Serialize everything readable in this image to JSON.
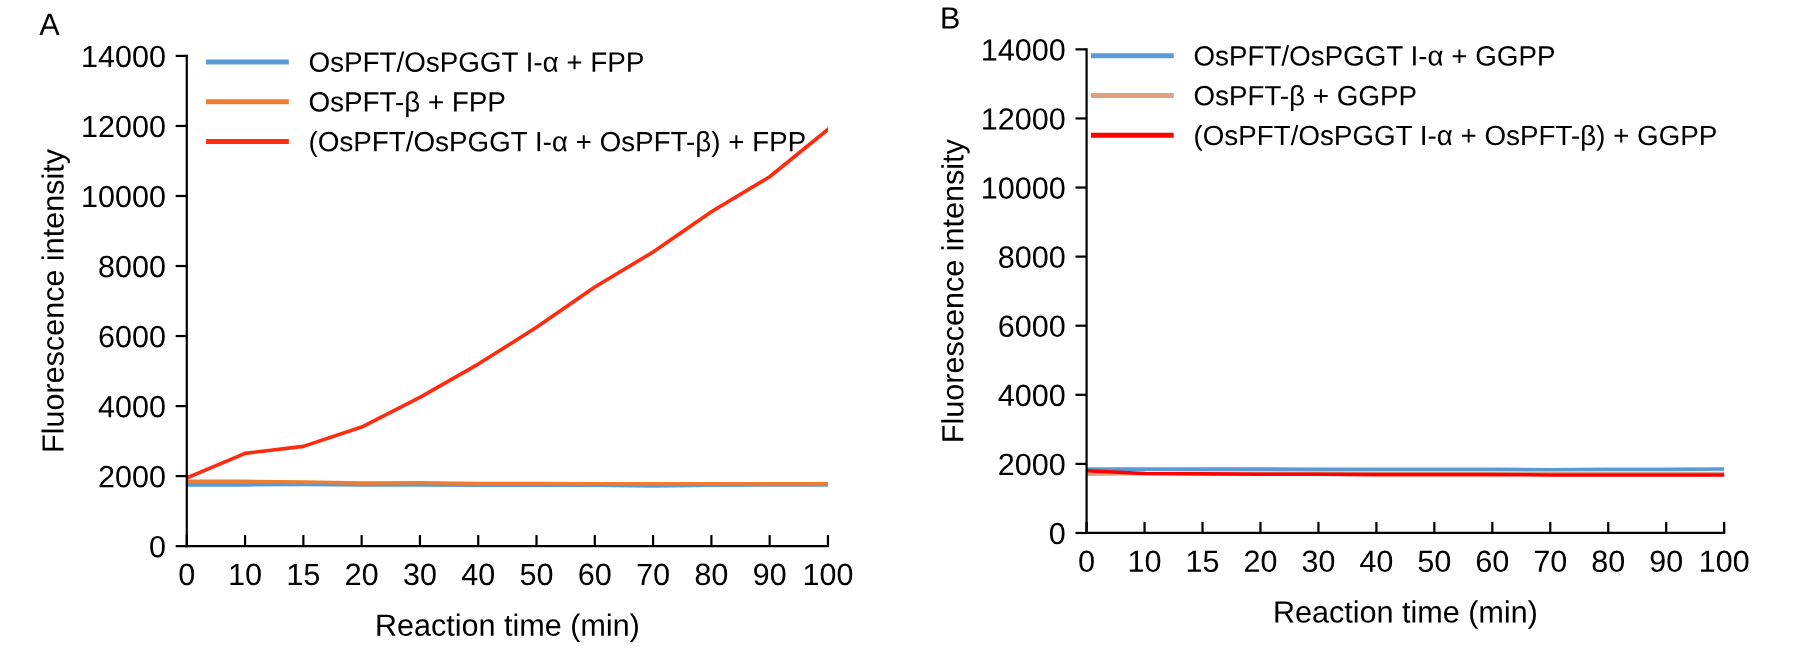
{
  "chart_data": [
    {
      "type": "line",
      "title": "A",
      "xlabel": "Reaction time (min)",
      "ylabel": "Fluorescence intensity",
      "categories": [
        "0",
        "10",
        "15",
        "20",
        "30",
        "40",
        "50",
        "60",
        "70",
        "80",
        "90",
        "100"
      ],
      "ylim": [
        0,
        14000
      ],
      "yticks": [
        0,
        2000,
        4000,
        6000,
        8000,
        10000,
        12000,
        14000
      ],
      "legend": "top",
      "grid": false,
      "series": [
        {
          "name": "OsPFT/OsPGGT I-α + FPP",
          "color": "#5b9bd5",
          "values": [
            1750,
            1750,
            1760,
            1750,
            1750,
            1740,
            1740,
            1740,
            1720,
            1740,
            1750,
            1750
          ]
        },
        {
          "name": "OsPFT-β + FPP",
          "color": "#ed7d31",
          "values": [
            1850,
            1850,
            1830,
            1800,
            1810,
            1790,
            1790,
            1780,
            1780,
            1780,
            1780,
            1780
          ]
        },
        {
          "name": "(OsPFT/OsPGGT I-α + OsPFT-β) + FPP",
          "color": "#ff2b0f",
          "values": [
            1950,
            2650,
            2850,
            3400,
            4250,
            5200,
            6250,
            7400,
            8400,
            9550,
            10550,
            11900
          ]
        }
      ]
    },
    {
      "type": "line",
      "title": "B",
      "xlabel": "Reaction time (min)",
      "ylabel": "Fluorescence intensity",
      "categories": [
        "0",
        "10",
        "15",
        "20",
        "30",
        "40",
        "50",
        "60",
        "70",
        "80",
        "90",
        "100"
      ],
      "ylim": [
        0,
        14000
      ],
      "yticks": [
        0,
        2000,
        4000,
        6000,
        8000,
        10000,
        12000,
        14000
      ],
      "legend": "top",
      "grid": false,
      "series": [
        {
          "name": "OsPFT/OsPGGT I-α + GGPP",
          "color": "#5b9bd5",
          "values": [
            1850,
            1850,
            1850,
            1850,
            1840,
            1840,
            1840,
            1840,
            1830,
            1840,
            1840,
            1850
          ]
        },
        {
          "name": "OsPFT-β + GGPP",
          "color": "#e0a080",
          "values": [
            1700,
            1720,
            1730,
            1730,
            1730,
            1720,
            1720,
            1720,
            1710,
            1720,
            1720,
            1720
          ]
        },
        {
          "name": "(OsPFT/OsPGGT I-α + OsPFT-β) + GGPP",
          "color": "#ff0000",
          "values": [
            1800,
            1720,
            1710,
            1700,
            1700,
            1690,
            1690,
            1690,
            1680,
            1680,
            1680,
            1680
          ]
        }
      ]
    }
  ]
}
